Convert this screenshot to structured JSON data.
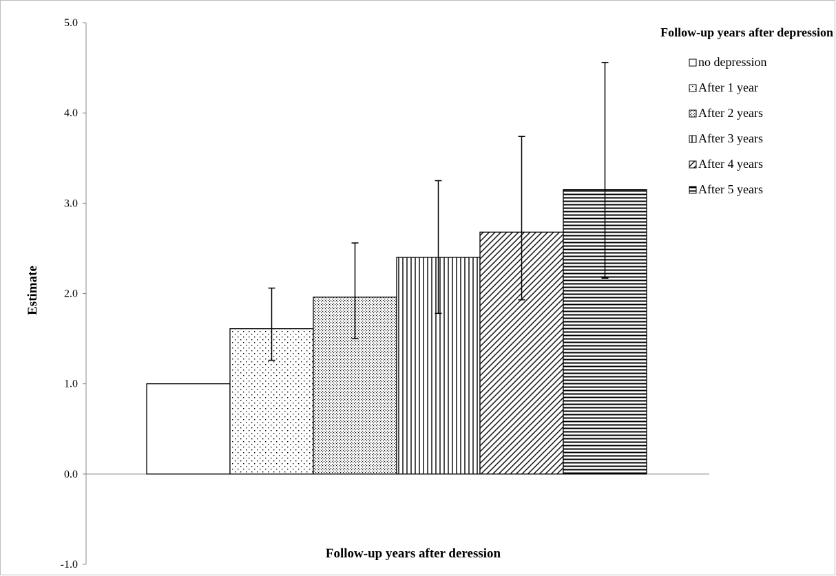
{
  "chart_data": {
    "type": "bar",
    "title": "",
    "xlabel": "Follow-up years after deression",
    "ylabel": "Estimate",
    "ylim": [
      -1.0,
      5.0
    ],
    "yticks": [
      "5.0",
      "4.0",
      "3.0",
      "2.0",
      "1.0",
      "0.0",
      "-1.0"
    ],
    "ytick_values": [
      5.0,
      4.0,
      3.0,
      2.0,
      1.0,
      0.0,
      -1.0
    ],
    "legend_title": "Follow-up years after depression",
    "legend_position": "top-right",
    "grid": false,
    "series": [
      {
        "name": "no depression",
        "value": 1.0,
        "pattern": "none",
        "error_low": null,
        "error_high": null
      },
      {
        "name": "After 1 year",
        "value": 1.61,
        "pattern": "sparse-dots",
        "error_low": 1.26,
        "error_high": 2.06
      },
      {
        "name": "After 2 years",
        "value": 1.96,
        "pattern": "dense-dots",
        "error_low": 1.5,
        "error_high": 2.56
      },
      {
        "name": "After 3 years",
        "value": 2.4,
        "pattern": "vertical-lines",
        "error_low": 1.78,
        "error_high": 3.25
      },
      {
        "name": "After 4 years",
        "value": 2.68,
        "pattern": "diagonal-lines",
        "error_low": 1.93,
        "error_high": 3.74
      },
      {
        "name": "After 5 years",
        "value": 3.15,
        "pattern": "horizontal-lines",
        "error_low": 2.17,
        "error_high": 4.56
      }
    ]
  },
  "colors": {
    "bar_fill": "#ffffff",
    "ink": "#000000",
    "frame": "#bdbdbd",
    "axis": "#888888"
  }
}
